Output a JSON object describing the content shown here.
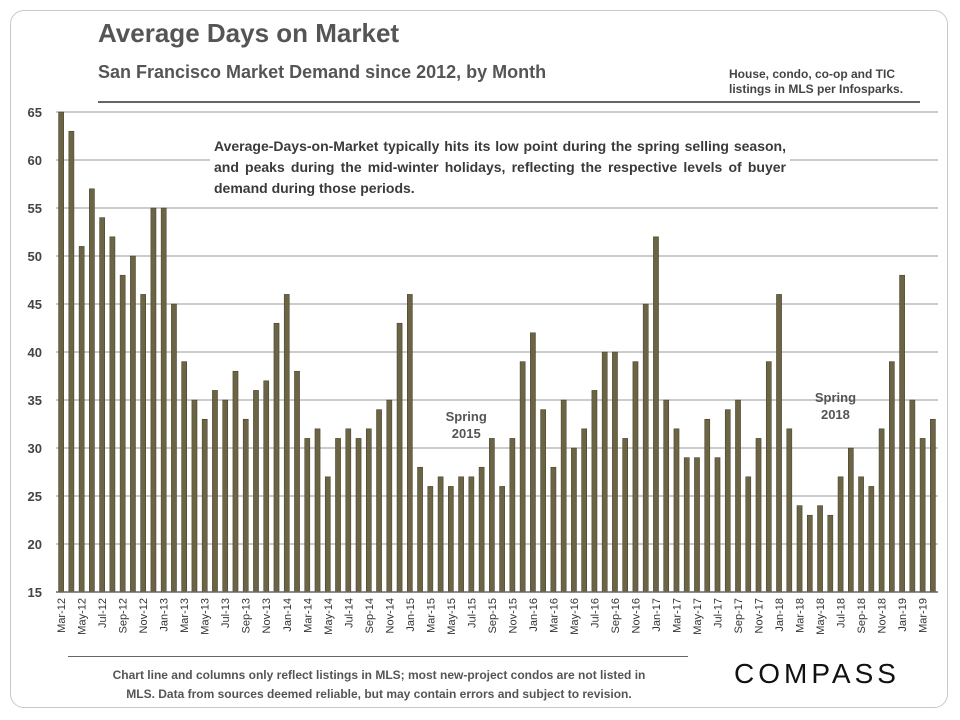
{
  "header": {
    "title": "Average Days on Market",
    "subtitle": "San Francisco Market Demand since 2012, by Month",
    "source_line1": "House, condo, co-op and TIC",
    "source_line2": "listings in MLS per Infosparks."
  },
  "annotation": "Average-Days-on-Market typically hits its low point during the spring selling season, and peaks during the mid-winter holidays, reflecting the respective levels of buyer demand during those periods.",
  "footer": {
    "note_line1": "Chart line and columns only reflect listings in MLS; most new-project condos are not listed in",
    "note_line2": "MLS. Data from sources deemed reliable, but may contain errors and subject to revision.",
    "logo": "COMPASS"
  },
  "colors": {
    "bar": "#6b6445",
    "bar_edge": "#3f3a26",
    "grid": "#9a9a9a",
    "text": "#555555"
  },
  "chart_data": {
    "type": "bar",
    "ylim": [
      15,
      65
    ],
    "yticks": [
      15,
      20,
      25,
      30,
      35,
      40,
      45,
      50,
      55,
      60,
      65
    ],
    "grid": true,
    "categories": [
      "Mar-12",
      "Apr-12",
      "May-12",
      "Jun-12",
      "Jul-12",
      "Aug-12",
      "Sep-12",
      "Oct-12",
      "Nov-12",
      "Dec-12",
      "Jan-13",
      "Feb-13",
      "Mar-13",
      "Apr-13",
      "May-13",
      "Jun-13",
      "Jul-13",
      "Aug-13",
      "Sep-13",
      "Oct-13",
      "Nov-13",
      "Dec-13",
      "Jan-14",
      "Feb-14",
      "Mar-14",
      "Apr-14",
      "May-14",
      "Jun-14",
      "Jul-14",
      "Aug-14",
      "Sep-14",
      "Oct-14",
      "Nov-14",
      "Dec-14",
      "Jan-15",
      "Feb-15",
      "Mar-15",
      "Apr-15",
      "May-15",
      "Jun-15",
      "Jul-15",
      "Aug-15",
      "Sep-15",
      "Oct-15",
      "Nov-15",
      "Dec-15",
      "Jan-16",
      "Feb-16",
      "Mar-16",
      "Apr-16",
      "May-16",
      "Jun-16",
      "Jul-16",
      "Aug-16",
      "Sep-16",
      "Oct-16",
      "Nov-16",
      "Dec-16",
      "Jan-17",
      "Feb-17",
      "Mar-17",
      "Apr-17",
      "May-17",
      "Jun-17",
      "Jul-17",
      "Aug-17",
      "Sep-17",
      "Oct-17",
      "Nov-17",
      "Dec-17",
      "Jan-18",
      "Feb-18",
      "Mar-18",
      "Apr-18",
      "May-18",
      "Jun-18",
      "Jul-18",
      "Aug-18",
      "Sep-18",
      "Oct-18",
      "Nov-18",
      "Dec-18",
      "Jan-19",
      "Feb-19",
      "Mar-19",
      "Apr-19"
    ],
    "values": [
      65,
      63,
      51,
      57,
      54,
      52,
      48,
      50,
      46,
      55,
      55,
      45,
      39,
      35,
      33,
      36,
      35,
      38,
      33,
      36,
      37,
      43,
      46,
      38,
      31,
      32,
      27,
      31,
      32,
      31,
      32,
      34,
      35,
      43,
      46,
      28,
      26,
      27,
      26,
      27,
      27,
      28,
      31,
      26,
      31,
      39,
      42,
      34,
      28,
      35,
      30,
      32,
      36,
      40,
      40,
      31,
      39,
      45,
      52,
      35,
      32,
      29,
      29,
      33,
      29,
      34,
      35,
      27,
      31,
      39,
      46,
      32,
      24,
      23,
      24,
      23,
      27,
      30,
      27,
      26,
      32,
      39,
      48,
      35,
      31,
      33
    ],
    "tick_labels": [
      "Mar-12",
      "May-12",
      "Jul-12",
      "Sep-12",
      "Nov-12",
      "Jan-13",
      "Mar-13",
      "May-13",
      "Jul-13",
      "Sep-13",
      "Nov-13",
      "Jan-14",
      "Mar-14",
      "May-14",
      "Jul-14",
      "Sep-14",
      "Nov-14",
      "Jan-15",
      "Mar-15",
      "May-15",
      "Jul-15",
      "Sep-15",
      "Nov-15",
      "Jan-16",
      "Mar-16",
      "May-16",
      "Jul-16",
      "Sep-16",
      "Nov-16",
      "Jan-17",
      "Mar-17",
      "May-17",
      "Jul-17",
      "Sep-17",
      "Nov-17",
      "Jan-18",
      "Mar-18",
      "May-18",
      "Jul-18",
      "Sep-18",
      "Nov-18",
      "Jan-19",
      "Mar-19"
    ],
    "callouts": [
      {
        "line1": "Spring",
        "line2": "2015",
        "category": "Jun-15"
      },
      {
        "line1": "Spring",
        "line2": "2018",
        "category": "Jun-18"
      }
    ]
  }
}
